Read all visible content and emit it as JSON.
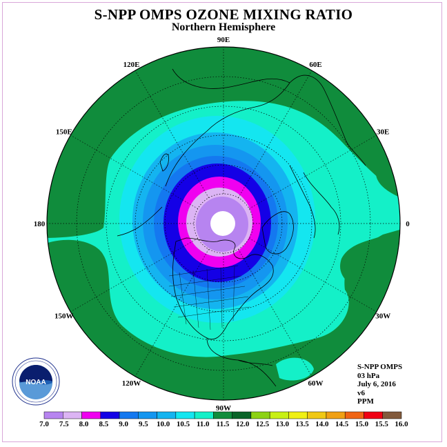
{
  "title": "S-NPP OMPS OZONE MIXING RATIO",
  "subtitle": "Northern Hemisphere",
  "longitude_labels": [
    "90E",
    "60E",
    "30E",
    "0",
    "30W",
    "60W",
    "90W",
    "120W",
    "150W",
    "180",
    "150E",
    "120E"
  ],
  "info": {
    "instrument": "S-NPP OMPS",
    "level": "03 hPa",
    "date": "July 6, 2016",
    "version": "v6",
    "units": "PPM"
  },
  "logo": {
    "text": "NOAA",
    "ring_text": "NATIONAL OCEANIC AND ATMOSPHERIC ADMINISTRATION · U.S. DEPARTMENT OF COMMERCE"
  },
  "colorbar": {
    "ticks": [
      "7.0",
      "7.5",
      "8.0",
      "8.5",
      "9.0",
      "9.5",
      "10.0",
      "10.5",
      "11.0",
      "11.5",
      "12.0",
      "12.5",
      "13.0",
      "13.5",
      "14.0",
      "14.5",
      "15.0",
      "15.5",
      "16.0"
    ],
    "colors": [
      "#b784f0",
      "#dcb4f4",
      "#f000f0",
      "#1400e6",
      "#1478f0",
      "#1496f0",
      "#14b4f0",
      "#14e6f0",
      "#14f0c8",
      "#108c3c",
      "#0a6428",
      "#8cd214",
      "#c8f014",
      "#f0f014",
      "#f0c814",
      "#f0a014",
      "#f06414",
      "#f00014",
      "#825a3c"
    ]
  },
  "contour_colors": {
    "outer": "#108c3c",
    "c11": "#14f0c8",
    "c10_5": "#14e6f0",
    "c10": "#14b4f0",
    "c9_5": "#1496f0",
    "c9": "#1478f0",
    "c8_5": "#1400e6",
    "c8": "#f000f0",
    "c7_5": "#dcb4f4",
    "c7": "#b784f0",
    "center": "#ffffff"
  }
}
